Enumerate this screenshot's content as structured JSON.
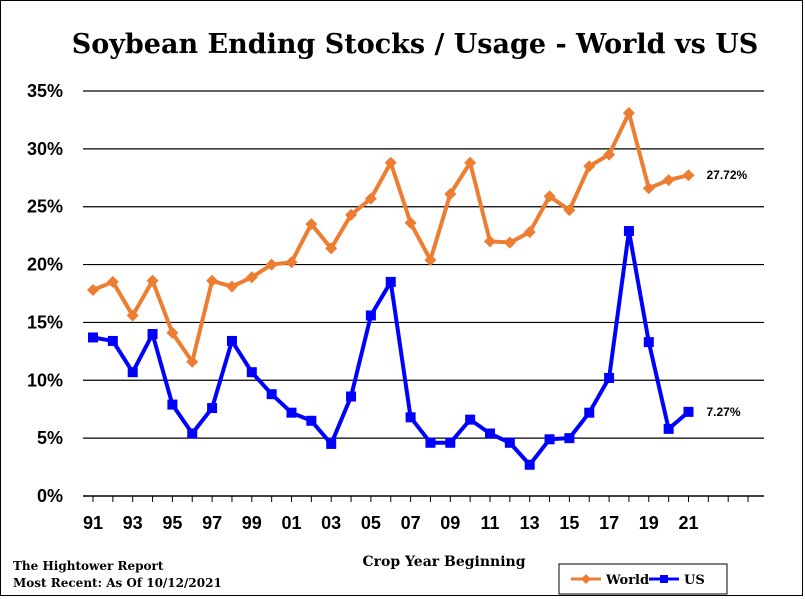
{
  "footer": {
    "line1": "The Hightower Report",
    "line2": "Most Recent: As Of 10/12/2021"
  },
  "chart_data": {
    "type": "line",
    "title": "Soybean Ending Stocks / Usage - World vs US",
    "xlabel": "Crop Year Beginning",
    "ylabel": "",
    "ylim": [
      0,
      35
    ],
    "y_ticks": [
      "0%",
      "5%",
      "10%",
      "15%",
      "20%",
      "25%",
      "30%",
      "35%"
    ],
    "x_ticks": [
      "91",
      "93",
      "95",
      "97",
      "99",
      "01",
      "03",
      "05",
      "07",
      "09",
      "11",
      "13",
      "15",
      "17",
      "19",
      "21"
    ],
    "x": [
      "91",
      "92",
      "93",
      "94",
      "95",
      "96",
      "97",
      "98",
      "99",
      "00",
      "01",
      "02",
      "03",
      "04",
      "05",
      "06",
      "07",
      "08",
      "09",
      "10",
      "11",
      "12",
      "13",
      "14",
      "15",
      "16",
      "17",
      "18",
      "19",
      "20",
      "21"
    ],
    "grid": "horizontal",
    "legend_position": "bottom-right",
    "series": [
      {
        "name": "World",
        "color": "#ED7D31",
        "marker": "diamond",
        "values": [
          17.8,
          18.5,
          15.6,
          18.6,
          14.1,
          11.6,
          18.6,
          18.1,
          18.9,
          20.0,
          20.2,
          23.5,
          21.4,
          24.3,
          25.7,
          28.8,
          23.6,
          20.4,
          26.1,
          28.8,
          22.0,
          21.9,
          22.8,
          25.9,
          24.7,
          28.5,
          29.5,
          33.1,
          26.6,
          27.3,
          27.72
        ],
        "end_label": "27.72%"
      },
      {
        "name": "US",
        "color": "#0000FF",
        "marker": "square",
        "values": [
          13.7,
          13.4,
          10.7,
          14.0,
          7.9,
          5.4,
          7.6,
          13.4,
          10.7,
          8.8,
          7.2,
          6.5,
          4.5,
          8.6,
          15.6,
          18.5,
          6.8,
          4.6,
          4.6,
          6.6,
          5.4,
          4.6,
          2.7,
          4.9,
          5.0,
          7.2,
          10.2,
          22.9,
          13.3,
          5.8,
          7.27
        ],
        "end_label": "7.27%"
      }
    ]
  }
}
